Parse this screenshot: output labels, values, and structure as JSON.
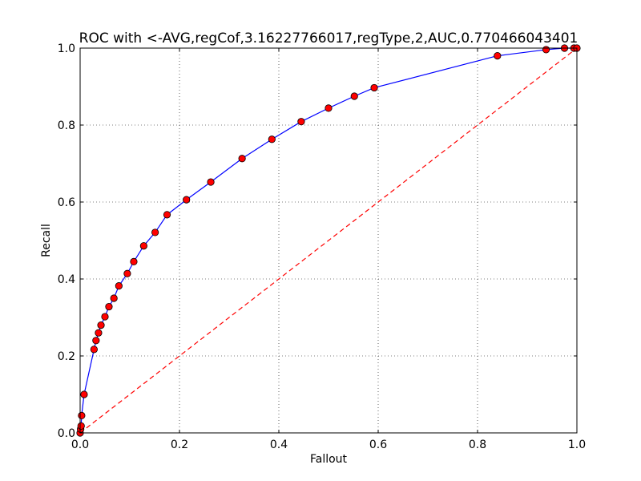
{
  "chart_data": {
    "type": "line",
    "title": "ROC with <-AVG,regCof,3.16227766017,regType,2,AUC,0.770466043401",
    "xlabel": "Fallout",
    "ylabel": "Recall",
    "xlim": [
      0.0,
      1.0
    ],
    "ylim": [
      0.0,
      1.0
    ],
    "grid": true,
    "xticks": [
      "0.0",
      "0.2",
      "0.4",
      "0.6",
      "0.8",
      "1.0"
    ],
    "yticks": [
      "0.0",
      "0.2",
      "0.4",
      "0.6",
      "0.8",
      "1.0"
    ],
    "series": [
      {
        "line_color": "#0000ff",
        "marker_color": "#ff0000",
        "line_style": "solid",
        "points": [
          [
            0.0,
            0.0
          ],
          [
            0.001,
            0.01
          ],
          [
            0.002,
            0.018
          ],
          [
            0.003,
            0.045
          ],
          [
            0.008,
            0.1
          ],
          [
            0.028,
            0.217
          ],
          [
            0.032,
            0.24
          ],
          [
            0.037,
            0.26
          ],
          [
            0.042,
            0.28
          ],
          [
            0.05,
            0.302
          ],
          [
            0.058,
            0.328
          ],
          [
            0.068,
            0.35
          ],
          [
            0.078,
            0.382
          ],
          [
            0.095,
            0.414
          ],
          [
            0.108,
            0.445
          ],
          [
            0.128,
            0.486
          ],
          [
            0.151,
            0.521
          ],
          [
            0.175,
            0.567
          ],
          [
            0.214,
            0.606
          ],
          [
            0.263,
            0.652
          ],
          [
            0.326,
            0.713
          ],
          [
            0.386,
            0.763
          ],
          [
            0.445,
            0.809
          ],
          [
            0.5,
            0.844
          ],
          [
            0.552,
            0.875
          ],
          [
            0.592,
            0.897
          ],
          [
            0.84,
            0.98
          ],
          [
            0.938,
            0.996
          ],
          [
            0.975,
            1.0
          ],
          [
            0.994,
            1.0
          ],
          [
            1.0,
            1.0
          ]
        ]
      },
      {
        "line_color": "#ff0000",
        "line_style": "dashed",
        "points": [
          [
            0.0,
            0.0
          ],
          [
            1.0,
            1.0
          ]
        ]
      }
    ]
  }
}
